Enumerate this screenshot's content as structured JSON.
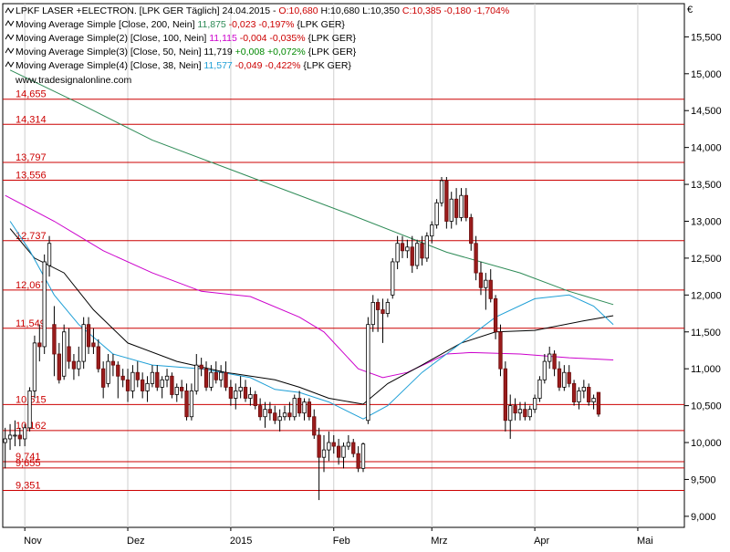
{
  "chart_data": {
    "type": "candlestick",
    "header": {
      "title_segments": [
        {
          "text": "LPKF LASER +ELECTRON. [LPK GER  Täglich] 24.04.2015 - ",
          "color": "#000000"
        },
        {
          "text": "O:10,680 ",
          "color": "#cc0000"
        },
        {
          "text": "H:10,680 L:10,350 ",
          "color": "#000000"
        },
        {
          "text": "C:10,385 -0,180 -1,704%",
          "color": "#cc0000"
        }
      ],
      "indicators": [
        {
          "segments": [
            {
              "text": "Moving Average Simple [Close, 200, Nein] ",
              "color": "#000000"
            },
            {
              "text": "11,875",
              "color": "#2e8b57"
            },
            {
              "text": " -0,023 -0,197%",
              "color": "#cc0000"
            },
            {
              "text": " {LPK GER}",
              "color": "#000000"
            }
          ]
        },
        {
          "segments": [
            {
              "text": "Moving Average Simple(2) [Close, 100, Nein] ",
              "color": "#000000"
            },
            {
              "text": "11,115",
              "color": "#cc00cc"
            },
            {
              "text": " -0,004 -0,035%",
              "color": "#cc0000"
            },
            {
              "text": " {LPK GER}",
              "color": "#000000"
            }
          ]
        },
        {
          "segments": [
            {
              "text": "Moving Average Simple(3) [Close, 50, Nein] ",
              "color": "#000000"
            },
            {
              "text": "11,719",
              "color": "#000000"
            },
            {
              "text": " +0,008 +0,072%",
              "color": "#008800"
            },
            {
              "text": " {LPK GER}",
              "color": "#000000"
            }
          ]
        },
        {
          "segments": [
            {
              "text": "Moving Average Simple(4) [Close, 38, Nein] ",
              "color": "#000000"
            },
            {
              "text": "11,577",
              "color": "#1e9fd6"
            },
            {
              "text": " -0,049 -0,422%",
              "color": "#cc0000"
            },
            {
              "text": " {LPK GER}",
              "color": "#000000"
            }
          ]
        }
      ],
      "watermark": "www.tradesignalonline.com"
    },
    "currency_label": "€",
    "y_axis": {
      "min": 8.85,
      "max": 15.95,
      "ticks": [
        "15,500",
        "15,000",
        "14,500",
        "14,000",
        "13,500",
        "13,000",
        "12,500",
        "12,000",
        "11,500",
        "11,000",
        "10,500",
        "10,000",
        "9,500",
        "9,000"
      ]
    },
    "x_axis": {
      "labels": [
        {
          "text": "Nov",
          "index": 4
        },
        {
          "text": "Dez",
          "index": 25
        },
        {
          "text": "2015",
          "index": 46
        },
        {
          "text": "Feb",
          "index": 67
        },
        {
          "text": "Mrz",
          "index": 87
        },
        {
          "text": "Apr",
          "index": 108
        },
        {
          "text": "Mai",
          "index": 129
        }
      ],
      "total_slots": 139
    },
    "horizontal_levels": [
      {
        "label": "14,655",
        "value": 14.655
      },
      {
        "label": "14,314",
        "value": 14.314
      },
      {
        "label": "13,797",
        "value": 13.797
      },
      {
        "label": "13,556",
        "value": 13.556
      },
      {
        "label": "12,737",
        "value": 12.737
      },
      {
        "label": "12,067",
        "value": 12.067
      },
      {
        "label": "11,549",
        "value": 11.549
      },
      {
        "label": "10,515",
        "value": 10.515
      },
      {
        "label": "10,162",
        "value": 10.162
      },
      {
        "label": "9,741",
        "value": 9.741
      },
      {
        "label": "9,655",
        "value": 9.655
      },
      {
        "label": "9,351",
        "value": 9.351
      }
    ],
    "series": [
      {
        "name": "Moving Average Simple [Close, 200, Nein]",
        "color": "#2e8b57",
        "points": [
          [
            1,
            15.05
          ],
          [
            15,
            14.6
          ],
          [
            30,
            14.1
          ],
          [
            50,
            13.6
          ],
          [
            70,
            13.1
          ],
          [
            90,
            12.58
          ],
          [
            105,
            12.3
          ],
          [
            115,
            12.05
          ],
          [
            124,
            11.87
          ]
        ]
      },
      {
        "name": "Moving Average Simple(2) [Close, 100, Nein]",
        "color": "#cc00cc",
        "points": [
          [
            0,
            13.35
          ],
          [
            10,
            13.0
          ],
          [
            20,
            12.6
          ],
          [
            30,
            12.3
          ],
          [
            40,
            12.05
          ],
          [
            50,
            11.98
          ],
          [
            60,
            11.7
          ],
          [
            65,
            11.5
          ],
          [
            72,
            11.0
          ],
          [
            77,
            10.88
          ],
          [
            82,
            10.95
          ],
          [
            90,
            11.2
          ],
          [
            95,
            11.22
          ],
          [
            105,
            11.2
          ],
          [
            115,
            11.15
          ],
          [
            124,
            11.12
          ]
        ]
      },
      {
        "name": "Moving Average Simple(3) [Close, 50, Nein]",
        "color": "#000000",
        "points": [
          [
            1,
            12.9
          ],
          [
            6,
            12.5
          ],
          [
            12,
            12.3
          ],
          [
            18,
            11.8
          ],
          [
            25,
            11.35
          ],
          [
            35,
            11.1
          ],
          [
            45,
            10.95
          ],
          [
            55,
            10.85
          ],
          [
            60,
            10.75
          ],
          [
            66,
            10.6
          ],
          [
            73,
            10.52
          ],
          [
            78,
            10.8
          ],
          [
            85,
            11.05
          ],
          [
            93,
            11.35
          ],
          [
            100,
            11.5
          ],
          [
            108,
            11.52
          ],
          [
            118,
            11.65
          ],
          [
            124,
            11.72
          ]
        ]
      },
      {
        "name": "Moving Average Simple(4) [Close, 38, Nein]",
        "color": "#1e9fd6",
        "points": [
          [
            1,
            13.0
          ],
          [
            5,
            12.6
          ],
          [
            10,
            12.0
          ],
          [
            15,
            11.6
          ],
          [
            22,
            11.2
          ],
          [
            30,
            11.05
          ],
          [
            40,
            11.0
          ],
          [
            50,
            10.88
          ],
          [
            55,
            10.72
          ],
          [
            60,
            10.68
          ],
          [
            66,
            10.55
          ],
          [
            73,
            10.32
          ],
          [
            78,
            10.5
          ],
          [
            85,
            10.95
          ],
          [
            92,
            11.3
          ],
          [
            100,
            11.7
          ],
          [
            108,
            11.95
          ],
          [
            115,
            12.0
          ],
          [
            120,
            11.85
          ],
          [
            124,
            11.6
          ]
        ]
      }
    ],
    "candles": [
      [
        10.0,
        10.2,
        9.65,
        10.05
      ],
      [
        10.05,
        10.25,
        9.9,
        10.1
      ],
      [
        10.1,
        10.3,
        9.95,
        10.1
      ],
      [
        10.1,
        10.2,
        9.95,
        10.05
      ],
      [
        10.05,
        10.25,
        9.95,
        10.2
      ],
      [
        10.2,
        10.75,
        10.15,
        10.7
      ],
      [
        10.7,
        11.45,
        10.6,
        11.35
      ],
      [
        11.35,
        11.6,
        11.1,
        11.3
      ],
      [
        11.3,
        12.55,
        11.2,
        12.45
      ],
      [
        12.4,
        12.8,
        12.25,
        12.7
      ],
      [
        11.6,
        11.85,
        10.9,
        11.2
      ],
      [
        11.2,
        11.35,
        10.8,
        10.85
      ],
      [
        10.9,
        11.6,
        10.85,
        11.5
      ],
      [
        11.3,
        11.55,
        11.0,
        11.1
      ],
      [
        11.1,
        11.2,
        10.85,
        11.0
      ],
      [
        11.0,
        11.3,
        10.9,
        11.1
      ],
      [
        11.1,
        11.7,
        11.0,
        11.6
      ],
      [
        11.6,
        11.7,
        11.2,
        11.3
      ],
      [
        11.35,
        11.55,
        11.2,
        11.3
      ],
      [
        11.3,
        11.4,
        10.95,
        11.0
      ],
      [
        11.0,
        11.1,
        10.6,
        10.75
      ],
      [
        10.8,
        11.2,
        10.75,
        11.1
      ],
      [
        11.1,
        11.2,
        10.9,
        11.05
      ],
      [
        11.05,
        11.1,
        10.6,
        10.9
      ],
      [
        10.9,
        11.0,
        10.75,
        10.85
      ],
      [
        10.85,
        11.0,
        10.55,
        10.7
      ],
      [
        10.7,
        11.05,
        10.6,
        10.95
      ],
      [
        10.95,
        11.1,
        10.75,
        10.85
      ],
      [
        10.85,
        10.95,
        10.6,
        10.7
      ],
      [
        10.7,
        10.9,
        10.55,
        10.8
      ],
      [
        10.8,
        11.05,
        10.75,
        10.95
      ],
      [
        10.95,
        11.05,
        10.7,
        10.75
      ],
      [
        10.75,
        10.9,
        10.6,
        10.85
      ],
      [
        10.85,
        11.0,
        10.75,
        10.9
      ],
      [
        10.9,
        10.95,
        10.6,
        10.65
      ],
      [
        10.65,
        10.8,
        10.55,
        10.75
      ],
      [
        10.75,
        10.85,
        10.6,
        10.7
      ],
      [
        10.7,
        10.8,
        10.3,
        10.35
      ],
      [
        10.35,
        10.8,
        10.3,
        10.7
      ],
      [
        10.7,
        11.2,
        10.65,
        11.05
      ],
      [
        11.05,
        11.15,
        10.9,
        11.0
      ],
      [
        11.0,
        11.1,
        10.7,
        10.75
      ],
      [
        10.75,
        11.05,
        10.7,
        10.95
      ],
      [
        10.95,
        11.1,
        10.8,
        10.85
      ],
      [
        10.85,
        11.05,
        10.75,
        10.95
      ],
      [
        10.95,
        11.1,
        10.7,
        10.75
      ],
      [
        10.75,
        10.85,
        10.5,
        10.6
      ],
      [
        10.6,
        10.8,
        10.45,
        10.7
      ],
      [
        10.7,
        10.9,
        10.6,
        10.75
      ],
      [
        10.75,
        10.85,
        10.55,
        10.6
      ],
      [
        10.6,
        10.75,
        10.5,
        10.65
      ],
      [
        10.65,
        10.7,
        10.45,
        10.5
      ],
      [
        10.5,
        10.6,
        10.3,
        10.35
      ],
      [
        10.35,
        10.55,
        10.2,
        10.45
      ],
      [
        10.45,
        10.55,
        10.3,
        10.4
      ],
      [
        10.4,
        10.5,
        10.25,
        10.3
      ],
      [
        10.3,
        10.45,
        10.15,
        10.35
      ],
      [
        10.35,
        10.5,
        10.3,
        10.4
      ],
      [
        10.4,
        10.55,
        10.3,
        10.35
      ],
      [
        10.35,
        10.65,
        10.3,
        10.6
      ],
      [
        10.6,
        10.7,
        10.35,
        10.4
      ],
      [
        10.4,
        10.6,
        10.3,
        10.55
      ],
      [
        10.55,
        10.6,
        10.3,
        10.35
      ],
      [
        10.35,
        10.45,
        10.05,
        10.1
      ],
      [
        10.1,
        10.2,
        9.22,
        9.8
      ],
      [
        9.8,
        10.1,
        9.6,
        9.9
      ],
      [
        9.9,
        10.15,
        9.75,
        10.0
      ],
      [
        10.0,
        10.1,
        9.85,
        9.95
      ],
      [
        9.95,
        10.05,
        9.7,
        9.8
      ],
      [
        9.8,
        10.0,
        9.65,
        9.95
      ],
      [
        9.95,
        10.1,
        9.9,
        10.0
      ],
      [
        10.0,
        10.05,
        9.8,
        9.85
      ],
      [
        9.85,
        9.95,
        9.6,
        9.65
      ],
      [
        9.65,
        10.0,
        9.6,
        9.98
      ],
      [
        10.3,
        11.7,
        10.25,
        11.6
      ],
      [
        11.6,
        12.0,
        11.5,
        11.9
      ],
      [
        11.9,
        11.95,
        11.5,
        11.8
      ],
      [
        11.8,
        11.95,
        11.35,
        11.75
      ],
      [
        11.75,
        11.95,
        11.7,
        11.9
      ],
      [
        12.0,
        12.5,
        11.95,
        12.45
      ],
      [
        12.45,
        12.8,
        12.35,
        12.7
      ],
      [
        12.7,
        12.8,
        12.5,
        12.6
      ],
      [
        12.6,
        12.75,
        12.5,
        12.65
      ],
      [
        12.65,
        12.8,
        12.3,
        12.4
      ],
      [
        12.4,
        12.75,
        12.35,
        12.7
      ],
      [
        12.7,
        12.8,
        12.4,
        12.5
      ],
      [
        12.5,
        12.85,
        12.45,
        12.8
      ],
      [
        12.8,
        13.0,
        12.7,
        12.95
      ],
      [
        12.95,
        13.3,
        12.9,
        13.25
      ],
      [
        13.25,
        13.6,
        13.2,
        13.55
      ],
      [
        13.55,
        13.6,
        12.9,
        13.0
      ],
      [
        13.0,
        13.4,
        12.9,
        13.3
      ],
      [
        13.3,
        13.45,
        12.95,
        13.05
      ],
      [
        13.05,
        13.45,
        13.0,
        13.35
      ],
      [
        13.35,
        13.45,
        13.0,
        13.05
      ],
      [
        13.05,
        13.1,
        12.6,
        12.7
      ],
      [
        12.7,
        12.8,
        12.2,
        12.3
      ],
      [
        12.3,
        12.45,
        12.0,
        12.1
      ],
      [
        12.1,
        12.3,
        11.8,
        12.2
      ],
      [
        12.2,
        12.35,
        11.9,
        11.95
      ],
      [
        11.95,
        12.0,
        11.4,
        11.5
      ],
      [
        11.5,
        11.6,
        10.9,
        11.0
      ],
      [
        11.0,
        11.1,
        10.15,
        10.3
      ],
      [
        10.3,
        10.65,
        10.05,
        10.5
      ],
      [
        10.5,
        10.6,
        10.3,
        10.4
      ],
      [
        10.4,
        10.55,
        10.3,
        10.45
      ],
      [
        10.45,
        10.55,
        10.3,
        10.35
      ],
      [
        10.35,
        10.5,
        10.3,
        10.45
      ],
      [
        10.45,
        10.65,
        10.4,
        10.6
      ],
      [
        10.6,
        10.9,
        10.55,
        10.85
      ],
      [
        10.85,
        11.2,
        10.8,
        11.1
      ],
      [
        11.1,
        11.3,
        11.0,
        11.2
      ],
      [
        11.2,
        11.25,
        10.9,
        11.0
      ],
      [
        11.0,
        11.1,
        10.7,
        10.75
      ],
      [
        10.75,
        11.05,
        10.7,
        10.95
      ],
      [
        10.95,
        11.05,
        10.75,
        10.8
      ],
      [
        10.8,
        10.85,
        10.5,
        10.55
      ],
      [
        10.55,
        10.75,
        10.45,
        10.7
      ],
      [
        10.7,
        10.85,
        10.6,
        10.75
      ],
      [
        10.75,
        10.8,
        10.5,
        10.55
      ],
      [
        10.55,
        10.65,
        10.45,
        10.6
      ],
      [
        10.68,
        10.68,
        10.35,
        10.385
      ]
    ]
  }
}
